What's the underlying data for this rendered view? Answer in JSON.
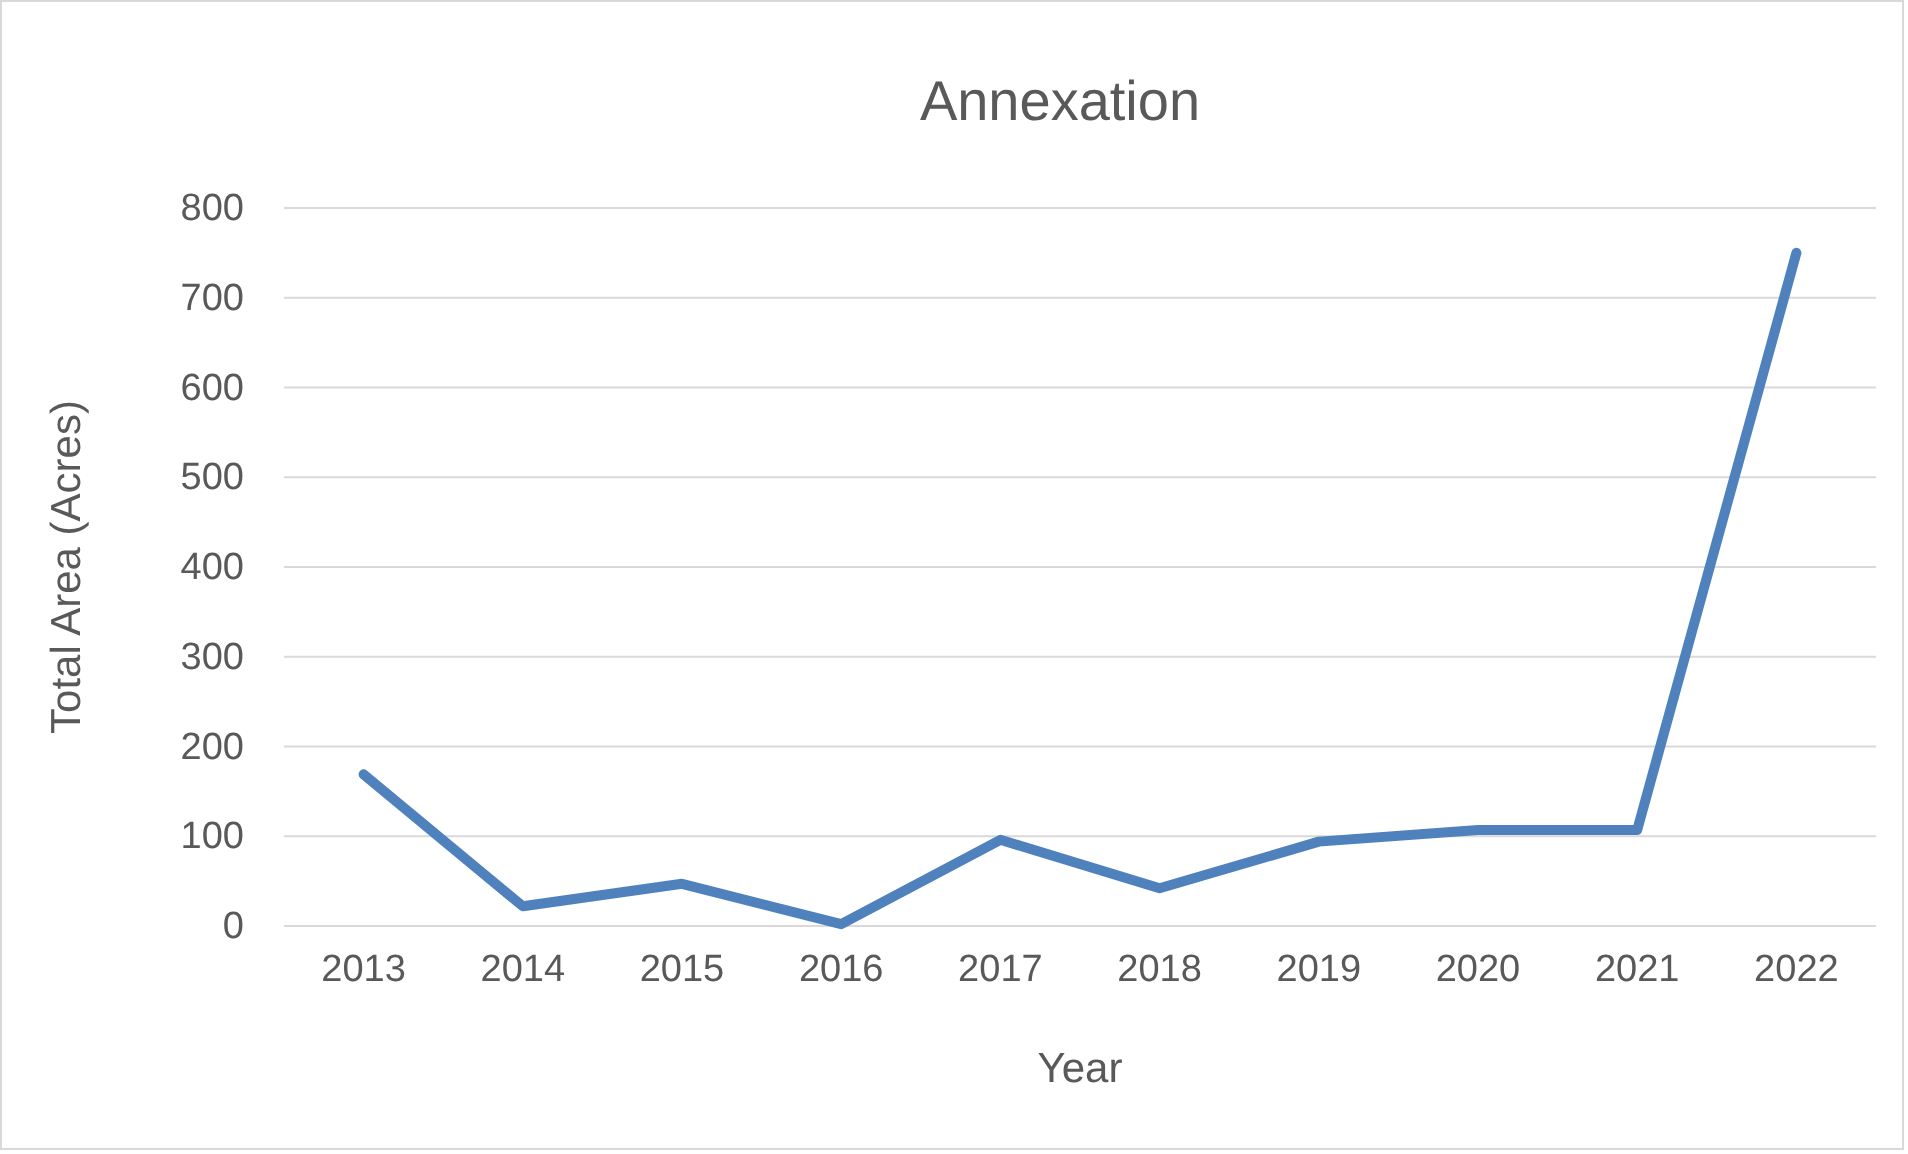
{
  "chart_data": {
    "type": "line",
    "title": "Annexation",
    "xlabel": "Year",
    "ylabel": "Total Area (Acres)",
    "categories": [
      "2013",
      "2014",
      "2015",
      "2016",
      "2017",
      "2018",
      "2019",
      "2020",
      "2021",
      "2022"
    ],
    "series": [
      {
        "color": "#4f81bd",
        "values": [
          169,
          22,
          47,
          2,
          96,
          42,
          94,
          107,
          107,
          750
        ]
      }
    ],
    "ylim": [
      0,
      800
    ],
    "yticks": [
      0,
      100,
      200,
      300,
      400,
      500,
      600,
      700,
      800
    ],
    "grid": "y",
    "marker": "none",
    "line_style": "solid"
  }
}
